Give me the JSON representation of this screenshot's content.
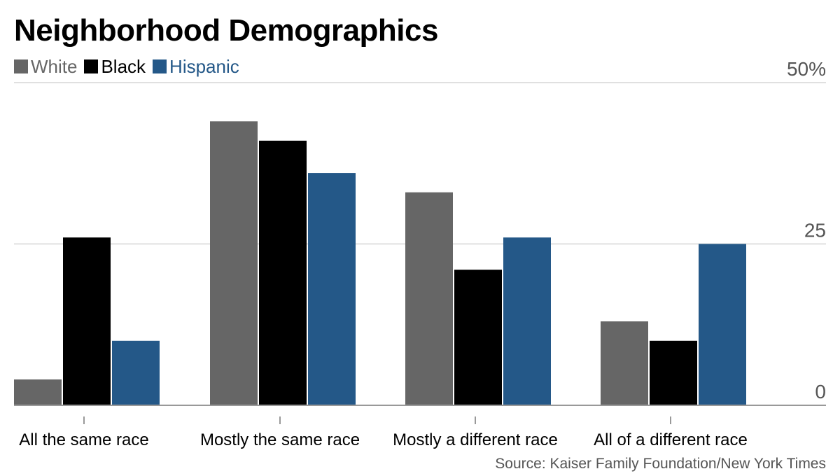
{
  "chart_data": {
    "type": "bar",
    "title": "Neighborhood Demographics",
    "categories": [
      "All the same race",
      "Mostly the same race",
      "Mostly a different race",
      "All of a different race"
    ],
    "series": [
      {
        "name": "White",
        "color": "#666666",
        "values": [
          4,
          44,
          33,
          13
        ]
      },
      {
        "name": "Black",
        "color": "#000000",
        "values": [
          26,
          41,
          21,
          10
        ]
      },
      {
        "name": "Hispanic",
        "color": "#245888",
        "values": [
          10,
          36,
          26,
          25
        ]
      }
    ],
    "ylim": [
      0,
      50
    ],
    "yticks": [
      0,
      25,
      50
    ],
    "ytick_labels": [
      "0",
      "25",
      "50%"
    ],
    "xlabel": "",
    "ylabel": "",
    "grid": true,
    "legend": "top-left",
    "source": "Source: Kaiser Family Foundation/New York Times"
  }
}
